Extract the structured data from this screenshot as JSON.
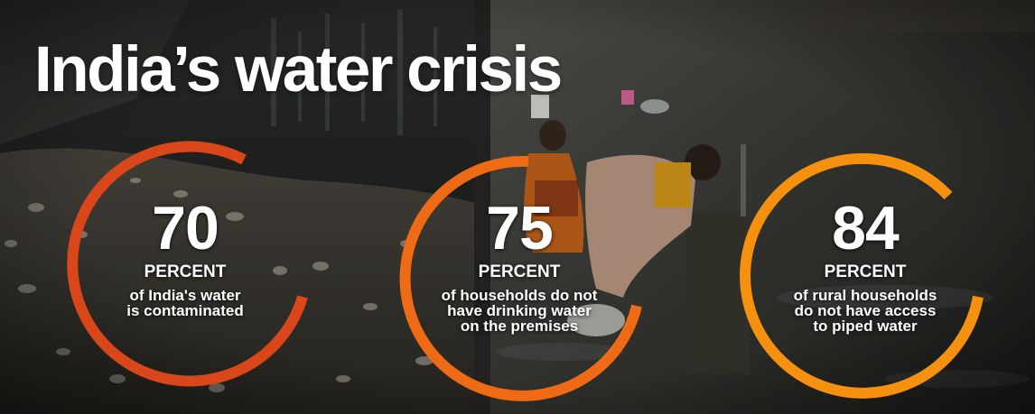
{
  "title": "India’s water crisis",
  "stats": [
    {
      "value": "70",
      "unit": "PERCENT",
      "description": "of India's water\nis contaminated"
    },
    {
      "value": "75",
      "unit": "PERCENT",
      "description": "of households do not\nhave drinking water\non the premises"
    },
    {
      "value": "84",
      "unit": "PERCENT",
      "description": "of rural households\ndo not have access\nto piped water"
    }
  ],
  "colors": {
    "ring_1": "#d9461a",
    "ring_2": "#ef6a14",
    "ring_3": "#f5910f",
    "text": "#ffffff"
  }
}
